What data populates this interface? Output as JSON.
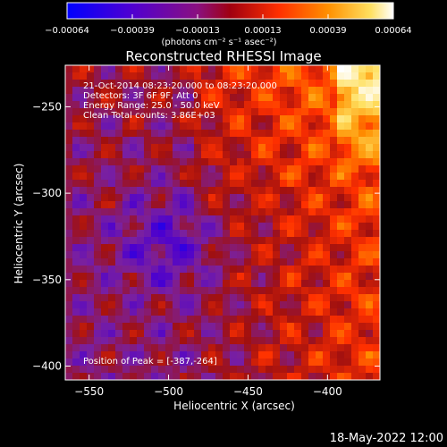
{
  "chart_data": {
    "type": "heatmap",
    "title": "Reconstructed RHESSI Image",
    "xlabel": "Heliocentric X (arcsec)",
    "ylabel": "Heliocentric Y (arcsec)",
    "xlim": [
      -565,
      -367
    ],
    "ylim": [
      -408,
      -226
    ],
    "x_ticks": [
      -550,
      -500,
      -450,
      -400
    ],
    "y_ticks": [
      -400,
      -350,
      -300,
      -250
    ],
    "x_tick_labels": [
      "−550",
      "−500",
      "−450",
      "−400"
    ],
    "y_tick_labels": [
      "−400",
      "−350",
      "−300",
      "−250"
    ],
    "colorbar": {
      "tick_labels": [
        "−0.00064",
        "−0.00039",
        "−0.00013",
        "0.00013",
        "0.00039",
        "0.00064"
      ],
      "units_label": "(photons cm⁻² s⁻¹ asec⁻²)",
      "range": [
        -0.00064,
        0.00064
      ],
      "colormap": [
        "#0000ff",
        "#4a00d0",
        "#7a20a0",
        "#a01010",
        "#ff3000",
        "#ff9000",
        "#ffe060",
        "#ffffff"
      ]
    },
    "info_lines": [
      "21-Oct-2014 08:23:20.000 to 08:23:20.000",
      "Detectors: 3F 6F 9F, Att 0",
      "Energy Range: 25.0 - 50.0 keV",
      "Clean     Total counts: 3.86E+03"
    ],
    "peak_label": "Position of Peak = [-387,-264]",
    "peak_position": [
      -387,
      -264
    ]
  },
  "footer": {
    "timestamp": "18-May-2022 12:00"
  }
}
